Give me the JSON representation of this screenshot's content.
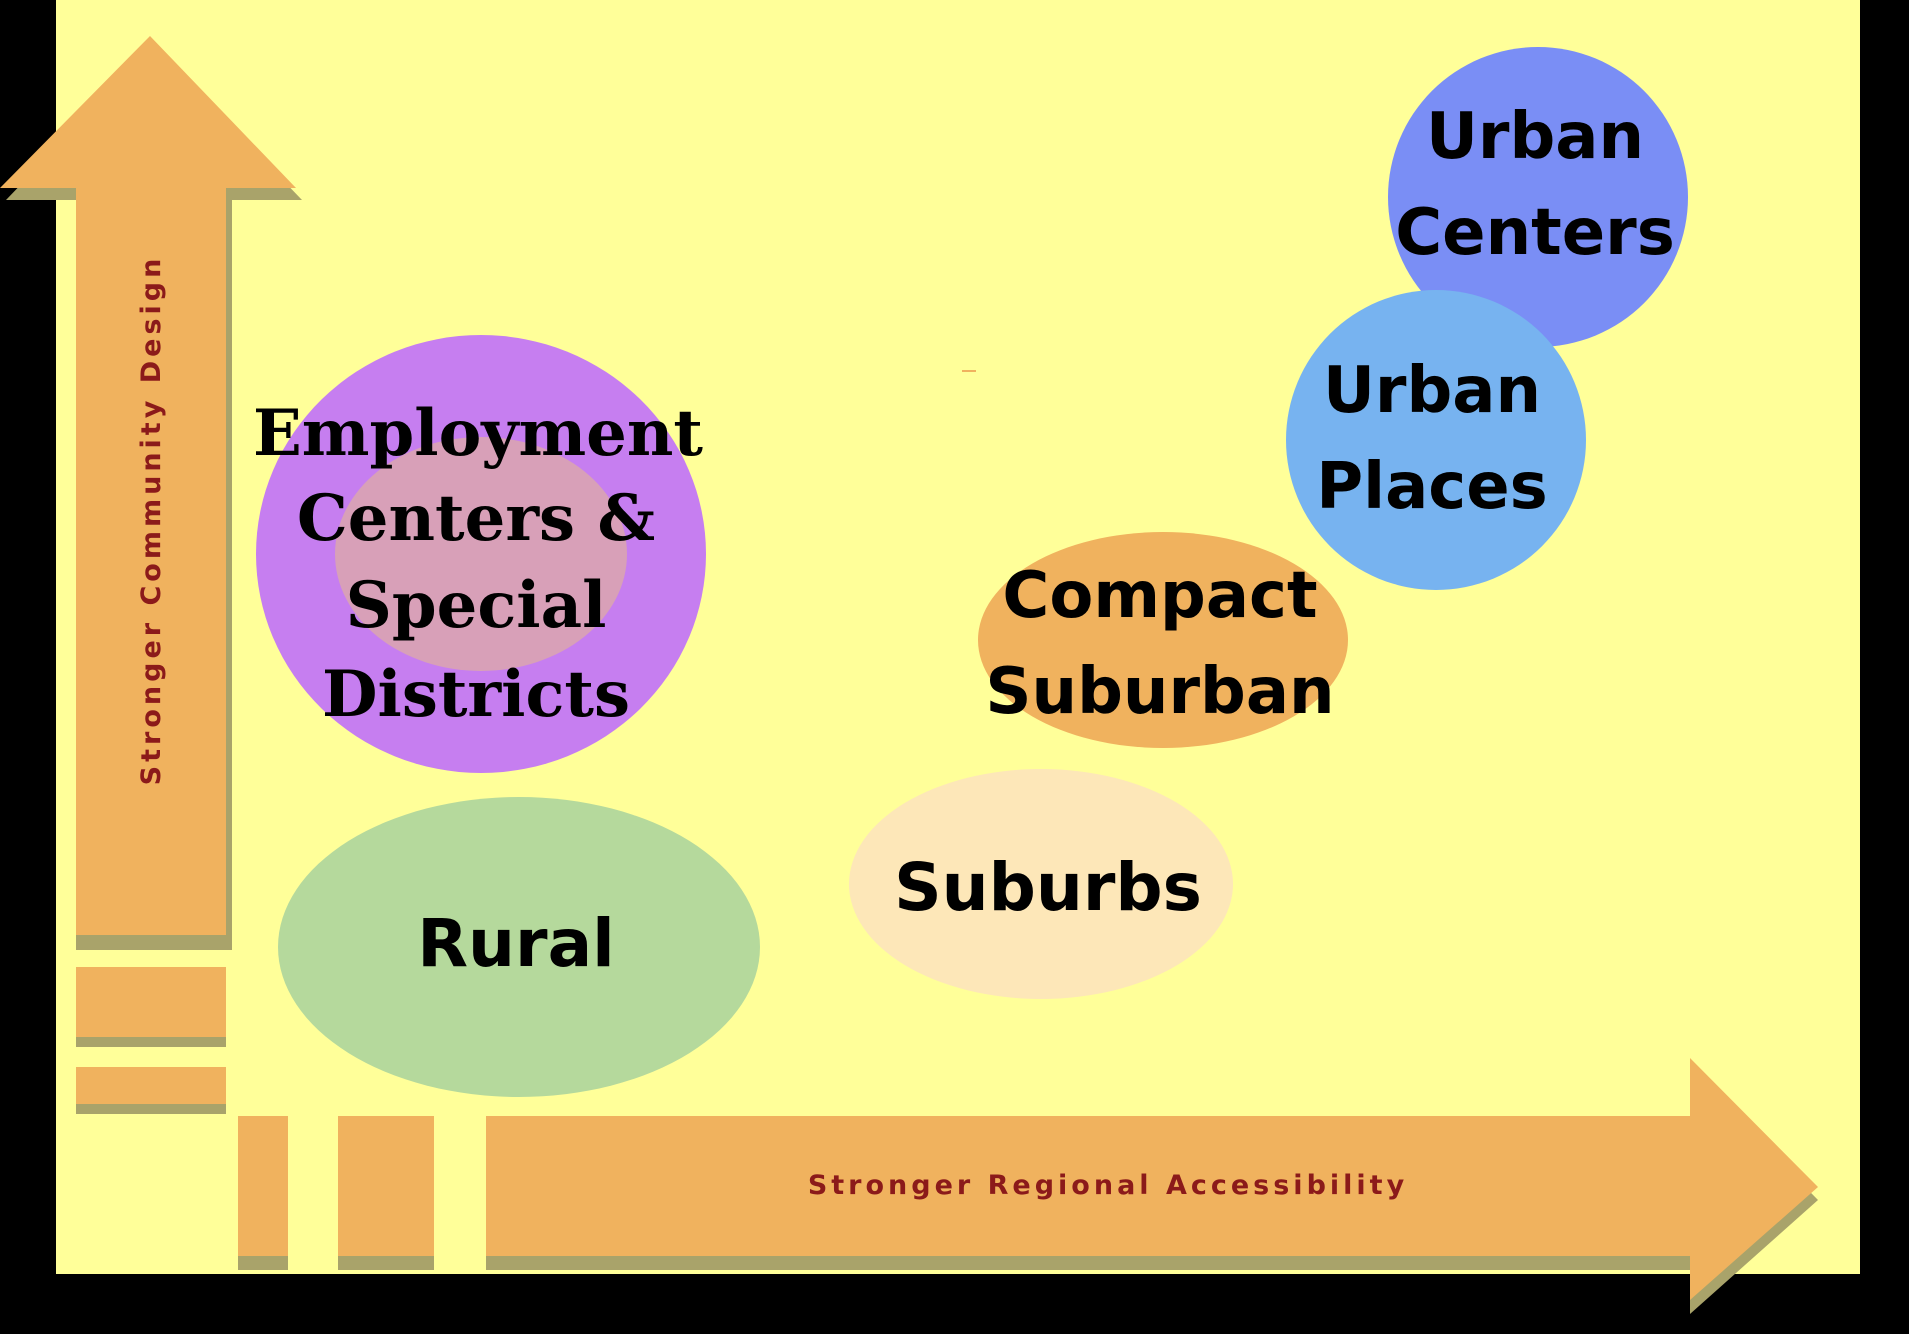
{
  "axes": {
    "y_label": "Stronger  Community Design",
    "x_label": "Stronger Regional Accessibility"
  },
  "bubbles": {
    "urban_centers": {
      "line1": "Urban",
      "line2": "Centers",
      "color": "#7a8ef5"
    },
    "urban_places": {
      "line1": "Urban",
      "line2": "Places",
      "color": "#77b3f0"
    },
    "compact_suburban": {
      "line1": "Compact",
      "line2": "Suburban",
      "color": "#f0b25e"
    },
    "employment": {
      "line1": "Employment",
      "line2": "Centers &",
      "line3": "Special",
      "line4": "Districts",
      "outer_color": "#c67ef0",
      "inner_color": "#d8a0b8"
    },
    "suburbs": {
      "line1": "Suburbs",
      "color": "#fde7b8"
    },
    "rural": {
      "line1": "Rural",
      "color": "#b5d99c"
    }
  },
  "colors": {
    "background": "#ffff99",
    "arrow": "#f0b25e",
    "arrow_shadow": "#a9a36a",
    "frame": "#000000"
  }
}
